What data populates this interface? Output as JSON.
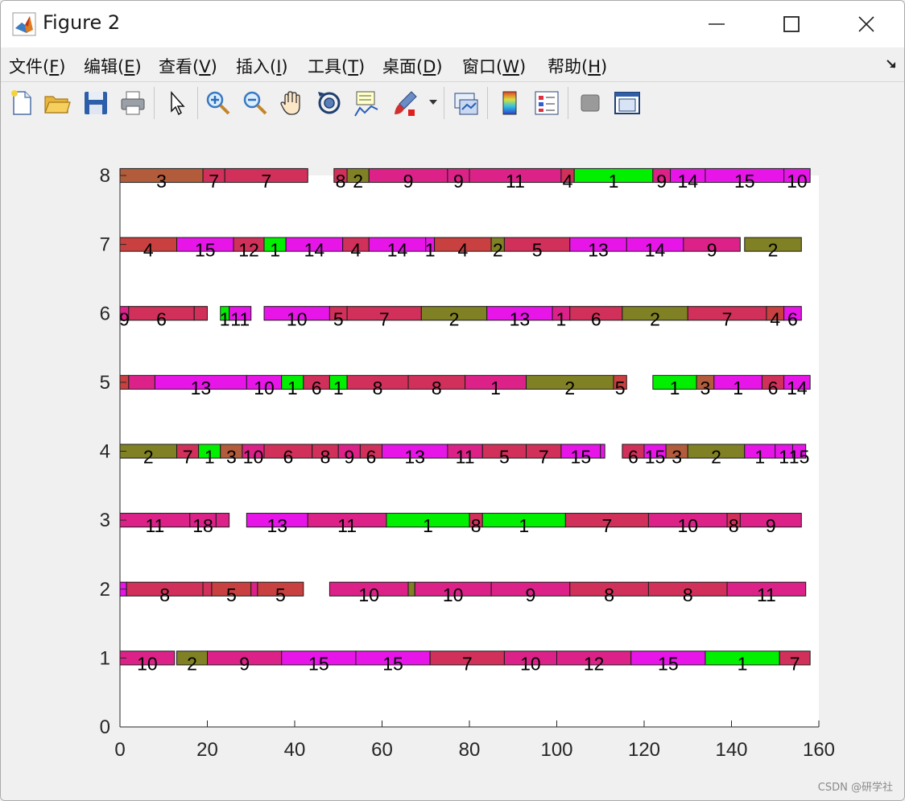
{
  "window": {
    "title": "Figure 2"
  },
  "menu": [
    {
      "label": "文件(",
      "accel": "F",
      "close": ")"
    },
    {
      "label": "编辑(",
      "accel": "E",
      "close": ")"
    },
    {
      "label": "查看(",
      "accel": "V",
      "close": ")"
    },
    {
      "label": "插入(",
      "accel": "I",
      "close": ")"
    },
    {
      "label": "工具(",
      "accel": "T",
      "close": ")"
    },
    {
      "label": "桌面(",
      "accel": "D",
      "close": ")"
    },
    {
      "label": "窗口(",
      "accel": "W",
      "close": ")"
    },
    {
      "label": "帮助(",
      "accel": "H",
      "close": ")"
    }
  ],
  "toolbar_icons": [
    "new-figure-icon",
    "open-file-icon",
    "save-icon",
    "print-icon",
    "pointer-icon",
    "zoom-in-icon",
    "zoom-out-icon",
    "pan-icon",
    "rotate-3d-icon",
    "data-cursor-icon",
    "brush-icon",
    "link-plot-icon",
    "colorbar-icon",
    "legend-icon",
    "hide-plot-tools-icon",
    "show-plot-tools-icon"
  ],
  "colors": {
    "brown": "#b35c3c",
    "crimson": "#d0305a",
    "pink": "#dc2288",
    "magenta": "#e815e8",
    "green": "#00f000",
    "olive": "#808024",
    "red": "#c84040"
  },
  "watermark": "CSDN @研学社",
  "chart_data": {
    "type": "gantt",
    "xlim": [
      0,
      160
    ],
    "ylim": [
      0,
      8
    ],
    "xticks": [
      0,
      20,
      40,
      60,
      80,
      100,
      120,
      140,
      160
    ],
    "yticks": [
      0,
      1,
      2,
      3,
      4,
      5,
      6,
      7,
      8
    ],
    "bar_height": 0.2,
    "rows": [
      {
        "y": 1,
        "bars": [
          {
            "start": 0,
            "end": 12.5,
            "label": "10",
            "color": "pink"
          },
          {
            "start": 13,
            "end": 20,
            "label": "2",
            "color": "olive"
          },
          {
            "start": 20,
            "end": 37,
            "label": "9",
            "color": "pink"
          },
          {
            "start": 37,
            "end": 54,
            "label": "15",
            "color": "magenta"
          },
          {
            "start": 54,
            "end": 71,
            "label": "15",
            "color": "magenta"
          },
          {
            "start": 71,
            "end": 88,
            "label": "7",
            "color": "crimson"
          },
          {
            "start": 88,
            "end": 100,
            "label": "10",
            "color": "pink"
          },
          {
            "start": 100,
            "end": 117,
            "label": "12",
            "color": "pink"
          },
          {
            "start": 117,
            "end": 134,
            "label": "15",
            "color": "magenta"
          },
          {
            "start": 134,
            "end": 151,
            "label": "1",
            "color": "green"
          },
          {
            "start": 151,
            "end": 158,
            "label": "7",
            "color": "crimson"
          }
        ]
      },
      {
        "y": 2,
        "bars": [
          {
            "start": 0,
            "end": 1.5,
            "label": "",
            "color": "magenta"
          },
          {
            "start": 1.5,
            "end": 19,
            "label": "8",
            "color": "crimson"
          },
          {
            "start": 19,
            "end": 21,
            "label": "",
            "color": "crimson"
          },
          {
            "start": 21,
            "end": 30,
            "label": "5",
            "color": "red"
          },
          {
            "start": 30,
            "end": 31.5,
            "label": "",
            "color": "pink"
          },
          {
            "start": 31.5,
            "end": 42,
            "label": "5",
            "color": "red"
          },
          {
            "start": 48,
            "end": 66,
            "label": "10",
            "color": "pink"
          },
          {
            "start": 66,
            "end": 67.5,
            "label": "",
            "color": "olive"
          },
          {
            "start": 67.5,
            "end": 85,
            "label": "10",
            "color": "pink"
          },
          {
            "start": 85,
            "end": 103,
            "label": "9",
            "color": "pink"
          },
          {
            "start": 103,
            "end": 121,
            "label": "8",
            "color": "crimson"
          },
          {
            "start": 121,
            "end": 139,
            "label": "8",
            "color": "crimson"
          },
          {
            "start": 139,
            "end": 157,
            "label": "11",
            "color": "pink"
          }
        ]
      },
      {
        "y": 3,
        "bars": [
          {
            "start": 0,
            "end": 16,
            "label": "11",
            "color": "pink"
          },
          {
            "start": 16,
            "end": 22,
            "label": "18",
            "color": "pink"
          },
          {
            "start": 22,
            "end": 25,
            "label": "",
            "color": "pink"
          },
          {
            "start": 29,
            "end": 43,
            "label": "13",
            "color": "magenta"
          },
          {
            "start": 43,
            "end": 61,
            "label": "11",
            "color": "pink"
          },
          {
            "start": 61,
            "end": 80,
            "label": "1",
            "color": "green"
          },
          {
            "start": 80,
            "end": 83,
            "label": "8",
            "color": "crimson"
          },
          {
            "start": 83,
            "end": 102,
            "label": "1",
            "color": "green"
          },
          {
            "start": 102,
            "end": 121,
            "label": "7",
            "color": "crimson"
          },
          {
            "start": 121,
            "end": 139,
            "label": "10",
            "color": "pink"
          },
          {
            "start": 139,
            "end": 142,
            "label": "8",
            "color": "crimson"
          },
          {
            "start": 142,
            "end": 156,
            "label": "9",
            "color": "pink"
          }
        ]
      },
      {
        "y": 4,
        "bars": [
          {
            "start": 0,
            "end": 13,
            "label": "2",
            "color": "olive"
          },
          {
            "start": 13,
            "end": 18,
            "label": "7",
            "color": "crimson"
          },
          {
            "start": 18,
            "end": 23,
            "label": "1",
            "color": "green"
          },
          {
            "start": 23,
            "end": 28,
            "label": "3",
            "color": "brown"
          },
          {
            "start": 28,
            "end": 33,
            "label": "10",
            "color": "pink"
          },
          {
            "start": 33,
            "end": 44,
            "label": "6",
            "color": "crimson"
          },
          {
            "start": 44,
            "end": 50,
            "label": "8",
            "color": "crimson"
          },
          {
            "start": 50,
            "end": 55,
            "label": "9",
            "color": "pink"
          },
          {
            "start": 55,
            "end": 60,
            "label": "6",
            "color": "crimson"
          },
          {
            "start": 60,
            "end": 75,
            "label": "13",
            "color": "magenta"
          },
          {
            "start": 75,
            "end": 83,
            "label": "11",
            "color": "pink"
          },
          {
            "start": 83,
            "end": 93,
            "label": "5",
            "color": "crimson"
          },
          {
            "start": 93,
            "end": 101,
            "label": "7",
            "color": "crimson"
          },
          {
            "start": 101,
            "end": 110,
            "label": "15",
            "color": "magenta"
          },
          {
            "start": 110,
            "end": 111,
            "label": "",
            "color": "magenta"
          },
          {
            "start": 115,
            "end": 120,
            "label": "6",
            "color": "crimson"
          },
          {
            "start": 120,
            "end": 125,
            "label": "15",
            "color": "magenta"
          },
          {
            "start": 125,
            "end": 130,
            "label": "3",
            "color": "brown"
          },
          {
            "start": 130,
            "end": 143,
            "label": "2",
            "color": "olive"
          },
          {
            "start": 143,
            "end": 150,
            "label": "1",
            "color": "magenta"
          },
          {
            "start": 150,
            "end": 154,
            "label": "1",
            "color": "magenta"
          },
          {
            "start": 154,
            "end": 157,
            "label": "15",
            "color": "magenta"
          }
        ]
      },
      {
        "y": 5,
        "bars": [
          {
            "start": 0,
            "end": 2,
            "label": "",
            "color": "red"
          },
          {
            "start": 2,
            "end": 8,
            "label": "",
            "color": "pink"
          },
          {
            "start": 8,
            "end": 29,
            "label": "13",
            "color": "magenta"
          },
          {
            "start": 29,
            "end": 37,
            "label": "10",
            "color": "magenta"
          },
          {
            "start": 37,
            "end": 42,
            "label": "1",
            "color": "green"
          },
          {
            "start": 42,
            "end": 48,
            "label": "6",
            "color": "crimson"
          },
          {
            "start": 48,
            "end": 52,
            "label": "1",
            "color": "green"
          },
          {
            "start": 52,
            "end": 66,
            "label": "8",
            "color": "crimson"
          },
          {
            "start": 66,
            "end": 79,
            "label": "8",
            "color": "crimson"
          },
          {
            "start": 79,
            "end": 93,
            "label": "1",
            "color": "pink"
          },
          {
            "start": 93,
            "end": 113,
            "label": "2",
            "color": "olive"
          },
          {
            "start": 113,
            "end": 116,
            "label": "5",
            "color": "red"
          },
          {
            "start": 122,
            "end": 132,
            "label": "1",
            "color": "green"
          },
          {
            "start": 132,
            "end": 136,
            "label": "3",
            "color": "brown"
          },
          {
            "start": 136,
            "end": 147,
            "label": "1",
            "color": "magenta"
          },
          {
            "start": 147,
            "end": 152,
            "label": "6",
            "color": "crimson"
          },
          {
            "start": 152,
            "end": 158,
            "label": "14",
            "color": "magenta"
          }
        ]
      },
      {
        "y": 6,
        "bars": [
          {
            "start": 0,
            "end": 2,
            "label": "9",
            "color": "pink"
          },
          {
            "start": 2,
            "end": 17,
            "label": "6",
            "color": "crimson"
          },
          {
            "start": 17,
            "end": 20,
            "label": "",
            "color": "crimson"
          },
          {
            "start": 23,
            "end": 25,
            "label": "1",
            "color": "green"
          },
          {
            "start": 25,
            "end": 30,
            "label": "11",
            "color": "magenta"
          },
          {
            "start": 33,
            "end": 48,
            "label": "10",
            "color": "magenta"
          },
          {
            "start": 48,
            "end": 52,
            "label": "5",
            "color": "crimson"
          },
          {
            "start": 52,
            "end": 69,
            "label": "7",
            "color": "crimson"
          },
          {
            "start": 69,
            "end": 84,
            "label": "2",
            "color": "olive"
          },
          {
            "start": 84,
            "end": 99,
            "label": "13",
            "color": "magenta"
          },
          {
            "start": 99,
            "end": 103,
            "label": "1",
            "color": "pink"
          },
          {
            "start": 103,
            "end": 115,
            "label": "6",
            "color": "crimson"
          },
          {
            "start": 115,
            "end": 130,
            "label": "2",
            "color": "olive"
          },
          {
            "start": 130,
            "end": 148,
            "label": "7",
            "color": "crimson"
          },
          {
            "start": 148,
            "end": 152,
            "label": "4",
            "color": "red"
          },
          {
            "start": 152,
            "end": 156,
            "label": "6",
            "color": "magenta"
          }
        ]
      },
      {
        "y": 7,
        "bars": [
          {
            "start": 0,
            "end": 13,
            "label": "4",
            "color": "red"
          },
          {
            "start": 13,
            "end": 26,
            "label": "15",
            "color": "magenta"
          },
          {
            "start": 26,
            "end": 33,
            "label": "12",
            "color": "crimson"
          },
          {
            "start": 33,
            "end": 38,
            "label": "1",
            "color": "green"
          },
          {
            "start": 38,
            "end": 51,
            "label": "14",
            "color": "magenta"
          },
          {
            "start": 51,
            "end": 57,
            "label": "4",
            "color": "crimson"
          },
          {
            "start": 57,
            "end": 70,
            "label": "14",
            "color": "magenta"
          },
          {
            "start": 70,
            "end": 72,
            "label": "1",
            "color": "magenta"
          },
          {
            "start": 72,
            "end": 85,
            "label": "4",
            "color": "red"
          },
          {
            "start": 85,
            "end": 88,
            "label": "2",
            "color": "olive"
          },
          {
            "start": 88,
            "end": 103,
            "label": "5",
            "color": "crimson"
          },
          {
            "start": 103,
            "end": 116,
            "label": "13",
            "color": "magenta"
          },
          {
            "start": 116,
            "end": 129,
            "label": "14",
            "color": "magenta"
          },
          {
            "start": 129,
            "end": 142,
            "label": "9",
            "color": "pink"
          },
          {
            "start": 143,
            "end": 156,
            "label": "2",
            "color": "olive"
          }
        ]
      },
      {
        "y": 8,
        "bars": [
          {
            "start": 0,
            "end": 19,
            "label": "3",
            "color": "brown"
          },
          {
            "start": 19,
            "end": 24,
            "label": "7",
            "color": "crimson"
          },
          {
            "start": 24,
            "end": 43,
            "label": "7",
            "color": "crimson"
          },
          {
            "start": 49,
            "end": 52,
            "label": "8",
            "color": "crimson"
          },
          {
            "start": 52,
            "end": 57,
            "label": "2",
            "color": "olive"
          },
          {
            "start": 57,
            "end": 75,
            "label": "9",
            "color": "pink"
          },
          {
            "start": 75,
            "end": 80,
            "label": "9",
            "color": "pink"
          },
          {
            "start": 80,
            "end": 101,
            "label": "11",
            "color": "pink"
          },
          {
            "start": 101,
            "end": 104,
            "label": "4",
            "color": "crimson"
          },
          {
            "start": 104,
            "end": 122,
            "label": "1",
            "color": "green"
          },
          {
            "start": 122,
            "end": 126,
            "label": "9",
            "color": "pink"
          },
          {
            "start": 126,
            "end": 134,
            "label": "14",
            "color": "magenta"
          },
          {
            "start": 134,
            "end": 152,
            "label": "15",
            "color": "magenta"
          },
          {
            "start": 152,
            "end": 158,
            "label": "10",
            "color": "magenta"
          }
        ]
      }
    ]
  }
}
